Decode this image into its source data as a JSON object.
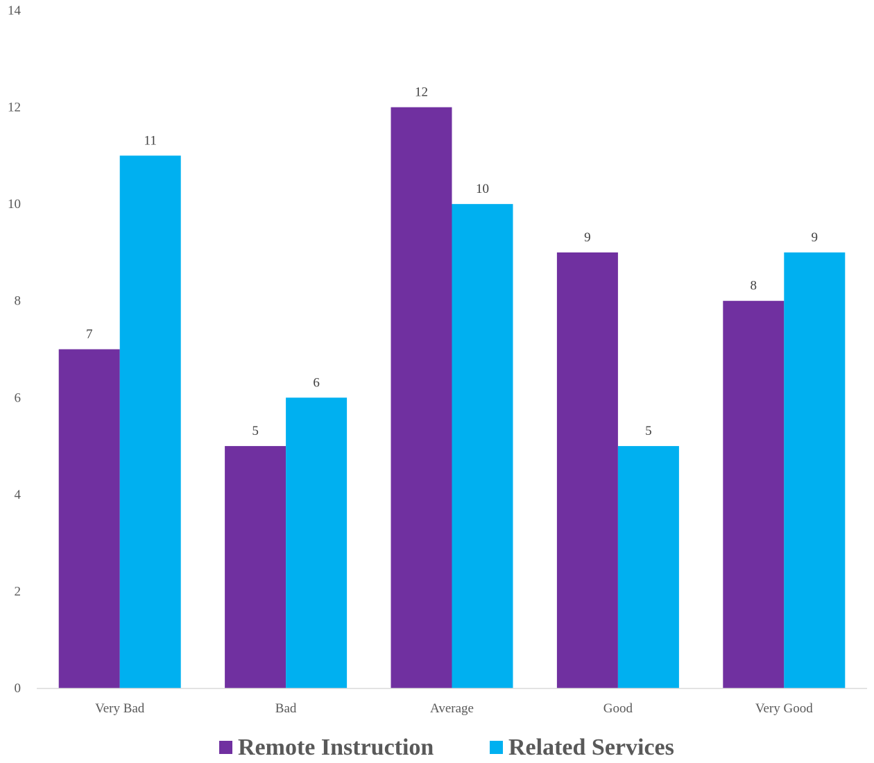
{
  "chart_data": {
    "type": "bar",
    "title": "",
    "xlabel": "",
    "ylabel": "",
    "categories": [
      "Very Bad",
      "Bad",
      "Average",
      "Good",
      "Very Good"
    ],
    "series": [
      {
        "name": "Remote Instruction",
        "values": [
          7,
          5,
          12,
          9,
          8
        ],
        "color": "#7030A0"
      },
      {
        "name": "Related Services",
        "values": [
          11,
          6,
          10,
          5,
          9
        ],
        "color": "#00B0F0"
      }
    ],
    "ylim": [
      0,
      14
    ],
    "yticks": [
      0,
      2,
      4,
      6,
      8,
      10,
      12,
      14
    ],
    "grid": false,
    "legend": "bottom",
    "data_labels": true
  }
}
